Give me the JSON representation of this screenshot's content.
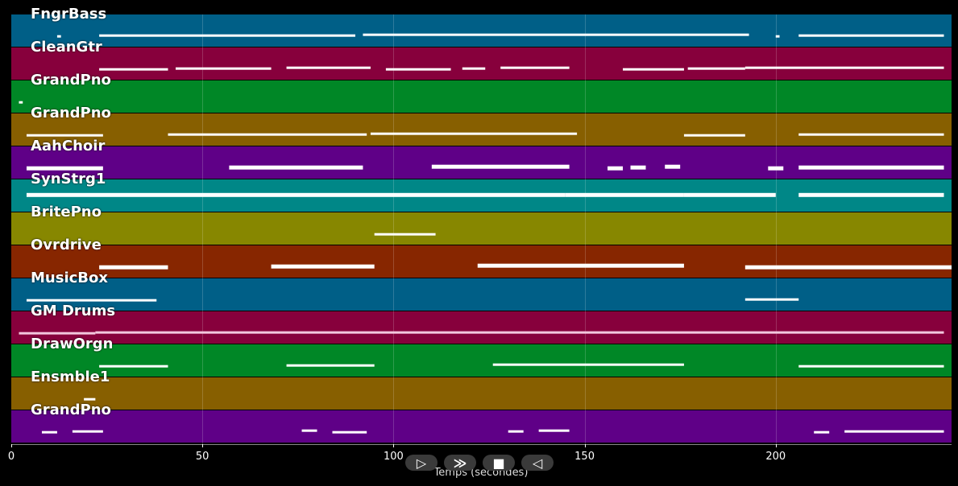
{
  "chart_data": {
    "type": "piano-roll",
    "xlabel": "Temps (secondes)",
    "xlim": [
      0,
      246
    ],
    "x_ticks": [
      0,
      50,
      100,
      150,
      200
    ],
    "grid": true,
    "tracks": [
      {
        "name": "FngrBass",
        "color": "#005f87",
        "segments": [
          [
            12,
            13
          ],
          [
            23,
            90
          ],
          [
            92,
            193
          ],
          [
            200,
            201
          ],
          [
            206,
            244
          ]
        ]
      },
      {
        "name": "CleanGtr",
        "color": "#87003c",
        "segments": [
          [
            23,
            41
          ],
          [
            43,
            68
          ],
          [
            72,
            94
          ],
          [
            98,
            115
          ],
          [
            118,
            124
          ],
          [
            128,
            146
          ],
          [
            160,
            176
          ],
          [
            177,
            192
          ],
          [
            192,
            244
          ]
        ]
      },
      {
        "name": "GrandPno",
        "color": "#008726",
        "segments": [
          [
            2,
            3
          ]
        ]
      },
      {
        "name": "GrandPno",
        "color": "#875f00",
        "segments": [
          [
            4,
            24
          ],
          [
            41,
            93
          ],
          [
            94,
            148
          ],
          [
            176,
            192
          ],
          [
            206,
            244
          ]
        ]
      },
      {
        "name": "AahChoir",
        "color": "#5f0087",
        "segments": [
          [
            4,
            24
          ],
          [
            57,
            92
          ],
          [
            110,
            146
          ],
          [
            156,
            160
          ],
          [
            162,
            166
          ],
          [
            171,
            175
          ],
          [
            198,
            202
          ],
          [
            206,
            244
          ]
        ]
      },
      {
        "name": "SynStrg1",
        "color": "#008787",
        "segments": [
          [
            4,
            145
          ],
          [
            145,
            176
          ],
          [
            176,
            200
          ],
          [
            206,
            244
          ]
        ]
      },
      {
        "name": "BritePno",
        "color": "#878700",
        "segments": [
          [
            95,
            111
          ]
        ]
      },
      {
        "name": "Ovrdrive",
        "color": "#872600",
        "segments": [
          [
            23,
            41
          ],
          [
            68,
            95
          ],
          [
            122,
            176
          ],
          [
            192,
            246
          ]
        ]
      },
      {
        "name": "MusicBox",
        "color": "#005f87",
        "segments": [
          [
            4,
            38
          ],
          [
            192,
            206
          ]
        ]
      },
      {
        "name": "GM Drums",
        "color": "#87003c",
        "segments": [
          [
            2,
            22
          ],
          [
            22,
            244
          ]
        ]
      },
      {
        "name": "DrawOrgn",
        "color": "#008726",
        "segments": [
          [
            23,
            41
          ],
          [
            72,
            95
          ],
          [
            126,
            176
          ],
          [
            206,
            244
          ]
        ]
      },
      {
        "name": "Ensmble1",
        "color": "#875f00",
        "segments": [
          [
            19,
            22
          ]
        ]
      },
      {
        "name": "GrandPno",
        "color": "#5f0087",
        "segments": [
          [
            8,
            12
          ],
          [
            16,
            24
          ],
          [
            76,
            80
          ],
          [
            84,
            93
          ],
          [
            130,
            134
          ],
          [
            138,
            146
          ],
          [
            210,
            214
          ],
          [
            218,
            244
          ]
        ]
      }
    ]
  },
  "controls": {
    "play_label": "▷",
    "forward_label": "≫",
    "stop_label": "■",
    "back_label": "◁"
  }
}
